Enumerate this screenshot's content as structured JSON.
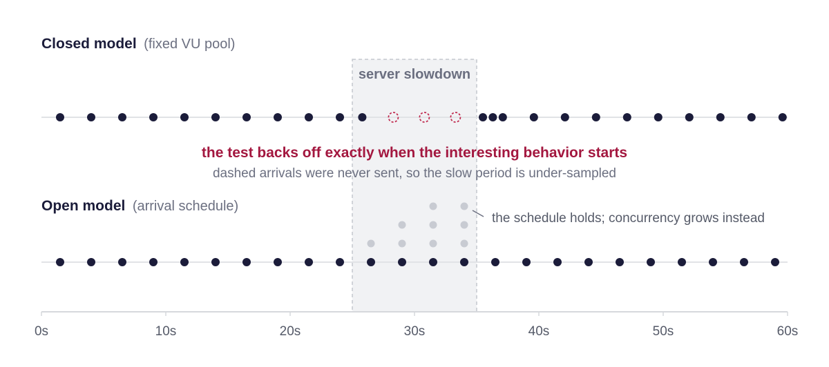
{
  "diagram": {
    "closed_model": {
      "title": "Closed model",
      "subtitle": "(fixed VU pool)"
    },
    "open_model": {
      "title": "Open model",
      "subtitle": "(arrival schedule)"
    },
    "region": {
      "label": "server slowdown",
      "start": 25,
      "end": 35
    },
    "note": {
      "title": "the test backs off exactly when the interesting behavior starts",
      "subtitle": "dashed arrivals were never sent, so the slow period is under-sampled"
    },
    "annotation": "the schedule holds; concurrency grows instead",
    "axis": {
      "min": 0,
      "max": 60,
      "ticks": [
        0,
        10,
        20,
        30,
        40,
        50,
        60
      ],
      "tick_labels": [
        "0s",
        "10s",
        "20s",
        "30s",
        "40s",
        "50s",
        "60s"
      ]
    },
    "closed_arrivals_sent": [
      1.5,
      4,
      6.5,
      9,
      11.5,
      14,
      16.5,
      19,
      21.5,
      24,
      25.8,
      35.5,
      36.3,
      37.1,
      39.6,
      42.1,
      44.6,
      47.1,
      49.6,
      52.1,
      54.6,
      57.1,
      59.6
    ],
    "closed_arrivals_missed": [
      28.3,
      30.8,
      33.3
    ],
    "open_arrivals": [
      1.5,
      4,
      6.5,
      9,
      11.5,
      14,
      16.5,
      19,
      21.5,
      24,
      26.5,
      29,
      31.5,
      34,
      36.5,
      39,
      41.5,
      44,
      46.5,
      49,
      51.5,
      54,
      56.5,
      59
    ],
    "concurrency_stacks": [
      {
        "x": 26.5,
        "count": 1
      },
      {
        "x": 29,
        "count": 2
      },
      {
        "x": 31.5,
        "count": 3
      },
      {
        "x": 34,
        "count": 3
      }
    ],
    "colors": {
      "sent": "#1b1c3a",
      "missed": "#c0294e",
      "queued": "#c8cbd2",
      "region_fill": "#f1f2f4",
      "region_stroke": "#c4c7cd",
      "axis": "#d6d8dc"
    }
  }
}
